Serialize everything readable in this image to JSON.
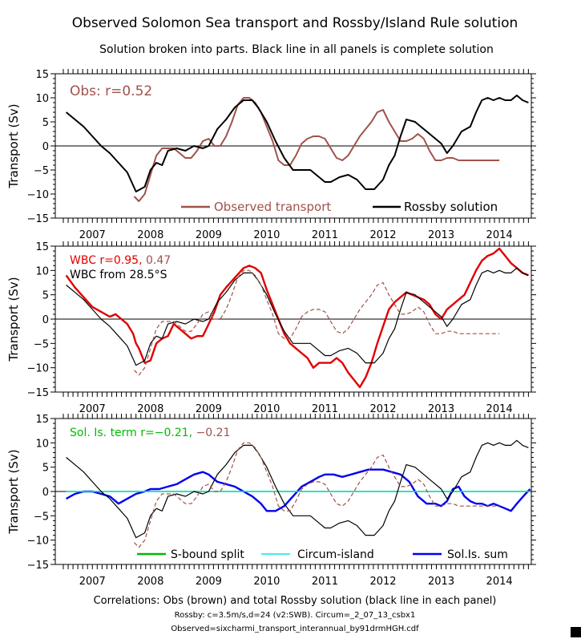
{
  "title": "Observed Solomon Sea transport and Rossby/Island Rule solution",
  "subtitle": "Solution broken into parts. Black line in all panels is complete solution",
  "footer": {
    "line1": "Correlations: Obs (brown) and total Rossby solution (black line in each panel)",
    "line2": "Rossby: c=3.5m/s,d=24 (v2:SWB). Circum=_2_07_13_csbx1",
    "line3": "Observed=sixcharmi_transport_interannual_by91drmHGH.cdf"
  },
  "colors": {
    "observed": "#a0524a",
    "rossby": "#000000",
    "wbc": "#e00000",
    "sbound": "#00bb00",
    "circum": "#00e5e5",
    "solis": "#0000ee",
    "axis": "#000000"
  },
  "chart_data": [
    {
      "type": "line",
      "ylabel": "Transport (Sv)",
      "ylim": [
        -15,
        15
      ],
      "yticks": [
        -15,
        -10,
        -5,
        0,
        5,
        10,
        15
      ],
      "xlim": [
        2006.5,
        2014.55
      ],
      "xtick_labels": [
        "2007",
        "2008",
        "2009",
        "2010",
        "2011",
        "2012",
        "2013",
        "2014"
      ],
      "annotation": "Obs: r=0.52",
      "series": [
        {
          "name": "Observed transport",
          "style": "solid",
          "color_key": "observed",
          "x": [
            2007.72,
            2007.8,
            2007.9,
            2008.0,
            2008.1,
            2008.2,
            2008.3,
            2008.4,
            2008.5,
            2008.6,
            2008.7,
            2008.8,
            2008.9,
            2009.0,
            2009.1,
            2009.2,
            2009.3,
            2009.4,
            2009.5,
            2009.6,
            2009.7,
            2009.8,
            2009.9,
            2010.0,
            2010.1,
            2010.2,
            2010.3,
            2010.4,
            2010.5,
            2010.6,
            2010.7,
            2010.8,
            2010.9,
            2011.0,
            2011.1,
            2011.2,
            2011.3,
            2011.4,
            2011.5,
            2011.6,
            2011.7,
            2011.8,
            2011.9,
            2012.0,
            2012.1,
            2012.2,
            2012.3,
            2012.4,
            2012.5,
            2012.6,
            2012.7,
            2012.8,
            2012.9,
            2013.0,
            2013.1,
            2013.2,
            2013.3,
            2013.4,
            2013.5,
            2013.6,
            2013.7,
            2013.8,
            2013.9,
            2014.0
          ],
          "y": [
            -10.5,
            -11.5,
            -10,
            -6,
            -2,
            -0.5,
            -0.5,
            -0.5,
            -1.5,
            -2.5,
            -2.5,
            -1,
            1,
            1.5,
            0,
            0,
            2,
            5,
            8.5,
            10,
            10,
            9,
            7,
            4,
            1,
            -3,
            -4,
            -4,
            -2,
            0.5,
            1.5,
            2,
            2,
            1.5,
            -0.5,
            -2.5,
            -3,
            -2,
            0,
            2,
            3.5,
            5,
            7,
            7.5,
            5,
            3,
            1,
            1,
            1.5,
            2.5,
            1.5,
            -1,
            -3,
            -3,
            -2.5,
            -2.5,
            -3,
            -3,
            -3,
            -3,
            -3,
            -3,
            -3,
            -3
          ]
        },
        {
          "name": "Rossby solution",
          "style": "solid",
          "color_key": "rossby",
          "x": [
            2006.55,
            2006.7,
            2006.85,
            2007.0,
            2007.15,
            2007.3,
            2007.45,
            2007.6,
            2007.75,
            2007.9,
            2008.0,
            2008.1,
            2008.2,
            2008.3,
            2008.45,
            2008.6,
            2008.75,
            2008.9,
            2009.0,
            2009.15,
            2009.3,
            2009.45,
            2009.6,
            2009.75,
            2009.85,
            2010.0,
            2010.15,
            2010.3,
            2010.45,
            2010.6,
            2010.75,
            2010.9,
            2011.0,
            2011.1,
            2011.25,
            2011.4,
            2011.55,
            2011.7,
            2011.85,
            2012.0,
            2012.1,
            2012.2,
            2012.3,
            2012.4,
            2012.55,
            2012.7,
            2012.85,
            2013.0,
            2013.1,
            2013.2,
            2013.35,
            2013.5,
            2013.6,
            2013.7,
            2013.8,
            2013.9,
            2014.0,
            2014.1,
            2014.2,
            2014.3,
            2014.4,
            2014.5
          ],
          "y": [
            7,
            5.5,
            4,
            2,
            0,
            -1.5,
            -3.5,
            -5.5,
            -9.5,
            -8.5,
            -5,
            -3.5,
            -4,
            -1,
            -0.5,
            -1,
            0,
            -0.5,
            0,
            3.5,
            5.5,
            8,
            9.5,
            9.5,
            8,
            5,
            1,
            -2.5,
            -5,
            -5,
            -5,
            -6.5,
            -7.5,
            -7.5,
            -6.5,
            -6,
            -7,
            -9,
            -9,
            -7,
            -4,
            -2,
            2,
            5.5,
            5,
            3.5,
            2,
            0.5,
            -1.5,
            0,
            3,
            4,
            7,
            9.5,
            10,
            9.5,
            10,
            9.5,
            9.5,
            10.5,
            9.5,
            9
          ]
        }
      ],
      "legend": [
        "Observed transport",
        "Rossby solution"
      ],
      "legend_placement": "bottom"
    },
    {
      "type": "line",
      "ylabel": "Transport (Sv)",
      "ylim": [
        -15,
        15
      ],
      "yticks": [
        -15,
        -10,
        -5,
        0,
        5,
        10,
        15
      ],
      "xlim": [
        2006.5,
        2014.55
      ],
      "xtick_labels": [
        "2007",
        "2008",
        "2009",
        "2010",
        "2011",
        "2012",
        "2013",
        "2014"
      ],
      "annotation_parts": [
        "WBC r=0.95, ",
        "0.47"
      ],
      "annotation2": "WBC from 28.5°S",
      "series": [
        {
          "name": "WBC from 28.5°S",
          "style": "solid",
          "color_key": "wbc",
          "x": [
            2006.55,
            2006.7,
            2006.85,
            2007.0,
            2007.15,
            2007.3,
            2007.4,
            2007.5,
            2007.6,
            2007.7,
            2007.75,
            2007.8,
            2007.9,
            2008.0,
            2008.1,
            2008.2,
            2008.3,
            2008.4,
            2008.5,
            2008.6,
            2008.7,
            2008.8,
            2008.9,
            2009.0,
            2009.1,
            2009.2,
            2009.3,
            2009.45,
            2009.6,
            2009.7,
            2009.8,
            2009.9,
            2010.0,
            2010.1,
            2010.2,
            2010.3,
            2010.4,
            2010.5,
            2010.6,
            2010.7,
            2010.8,
            2010.9,
            2011.0,
            2011.1,
            2011.2,
            2011.3,
            2011.4,
            2011.5,
            2011.6,
            2011.7,
            2011.8,
            2011.9,
            2012.0,
            2012.1,
            2012.2,
            2012.3,
            2012.4,
            2012.5,
            2012.6,
            2012.7,
            2012.8,
            2012.9,
            2013.0,
            2013.1,
            2013.2,
            2013.3,
            2013.4,
            2013.5,
            2013.6,
            2013.7,
            2013.8,
            2013.9,
            2014.0,
            2014.1,
            2014.2,
            2014.3,
            2014.4,
            2014.5
          ],
          "y": [
            9,
            6.5,
            4.5,
            2.5,
            1.5,
            0.5,
            1,
            0,
            -1,
            -3,
            -5,
            -6,
            -9,
            -8.5,
            -5,
            -4,
            -3.5,
            -1,
            -2,
            -3,
            -4,
            -3.5,
            -3.5,
            -1,
            1.5,
            5,
            6.5,
            8.5,
            10.5,
            11,
            10.5,
            9.5,
            6,
            3,
            0,
            -3,
            -5,
            -6,
            -7,
            -8,
            -10,
            -9,
            -9,
            -9,
            -8,
            -9,
            -11,
            -12.5,
            -14,
            -12,
            -9,
            -5,
            -1.5,
            2,
            3.5,
            4.5,
            5.5,
            5,
            4.5,
            4,
            3,
            1,
            0,
            2,
            3,
            4,
            5,
            7.5,
            10,
            12,
            13,
            13.5,
            14.5,
            13,
            11.5,
            10.5,
            9.5,
            9
          ]
        },
        {
          "name": "Rossby solution",
          "style": "solid",
          "color_key": "rossby",
          "ref": 0
        },
        {
          "name": "Observed transport",
          "style": "dashed",
          "color_key": "observed",
          "ref": 0
        }
      ]
    },
    {
      "type": "line",
      "ylabel": "Transport (Sv)",
      "ylim": [
        -15,
        15
      ],
      "yticks": [
        -15,
        -10,
        -5,
        0,
        5,
        10,
        15
      ],
      "xlim": [
        2006.5,
        2014.55
      ],
      "xtick_labels": [
        "2007",
        "2008",
        "2009",
        "2010",
        "2011",
        "2012",
        "2013",
        "2014"
      ],
      "annotation_parts": [
        "Sol. Is. term r=−0.21, ",
        "−0.21"
      ],
      "series": [
        {
          "name": "Sol.Is. sum",
          "style": "solid",
          "color_key": "solis",
          "x": [
            2006.55,
            2006.7,
            2006.85,
            2007.0,
            2007.15,
            2007.3,
            2007.45,
            2007.6,
            2007.75,
            2007.9,
            2008.0,
            2008.15,
            2008.3,
            2008.45,
            2008.6,
            2008.75,
            2008.9,
            2009.0,
            2009.15,
            2009.3,
            2009.45,
            2009.6,
            2009.75,
            2009.9,
            2010.0,
            2010.15,
            2010.3,
            2010.45,
            2010.6,
            2010.75,
            2010.9,
            2011.0,
            2011.15,
            2011.3,
            2011.45,
            2011.6,
            2011.75,
            2011.9,
            2012.0,
            2012.15,
            2012.3,
            2012.45,
            2012.6,
            2012.75,
            2012.9,
            2013.0,
            2013.1,
            2013.2,
            2013.3,
            2013.4,
            2013.5,
            2013.6,
            2013.7,
            2013.8,
            2013.9,
            2014.0,
            2014.1,
            2014.2,
            2014.3,
            2014.45,
            2014.53
          ],
          "y": [
            -1.5,
            -0.5,
            0,
            0,
            -0.5,
            -1,
            -2.5,
            -1.5,
            -0.5,
            0,
            0.5,
            0.5,
            1,
            1.5,
            2.5,
            3.5,
            4,
            3.5,
            2,
            1.5,
            1,
            0,
            -1,
            -2.5,
            -4,
            -4,
            -3,
            -1,
            1,
            2,
            3,
            3.5,
            3.5,
            3,
            3.5,
            4,
            4.5,
            4.5,
            4.5,
            4,
            3.5,
            2,
            -1,
            -2.5,
            -2.5,
            -3,
            -2,
            0.5,
            1,
            -1,
            -2,
            -2.5,
            -2.5,
            -3,
            -2.5,
            -3,
            -3.5,
            -4,
            -2.5,
            -0.5,
            0.5
          ]
        },
        {
          "name": "S-bound split",
          "style": "solid",
          "color_key": "sbound",
          "x": [
            2006.55,
            2014.53
          ],
          "y": [
            0,
            0
          ]
        },
        {
          "name": "Circum-island",
          "style": "solid",
          "color_key": "circum",
          "x": [
            2006.55,
            2014.53
          ],
          "y": [
            0,
            0
          ]
        },
        {
          "name": "Rossby solution",
          "style": "solid",
          "color_key": "rossby",
          "ref": 0
        },
        {
          "name": "Observed transport",
          "style": "dashed",
          "color_key": "observed",
          "ref": 0
        }
      ],
      "legend": [
        "S-bound split",
        "Circum-island",
        "Sol.Is. sum"
      ],
      "legend_placement": "bottom"
    }
  ]
}
